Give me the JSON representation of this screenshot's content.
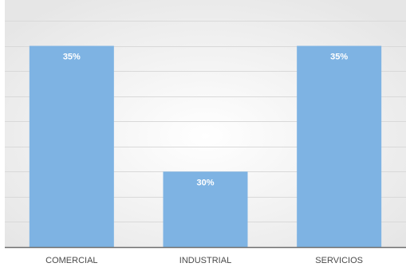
{
  "chart_data": {
    "type": "bar",
    "categories": [
      "COMERCIAL",
      "INDUSTRIAL",
      "SERVICIOS"
    ],
    "values": [
      35,
      30,
      35
    ],
    "data_labels": [
      "35%",
      "30%",
      "35%"
    ],
    "title": "",
    "xlabel": "",
    "ylabel": "",
    "ylim": [
      27,
      36
    ],
    "grid": true,
    "legend": "none",
    "colors": {
      "bar": "#7EB3E3",
      "grid": "#d9d9d9",
      "axis": "#6f6f6f",
      "background_edge": "#e6e6e6",
      "background_center": "#ffffff",
      "data_label": "#ffffff",
      "category_label": "#4a4a4a"
    }
  }
}
